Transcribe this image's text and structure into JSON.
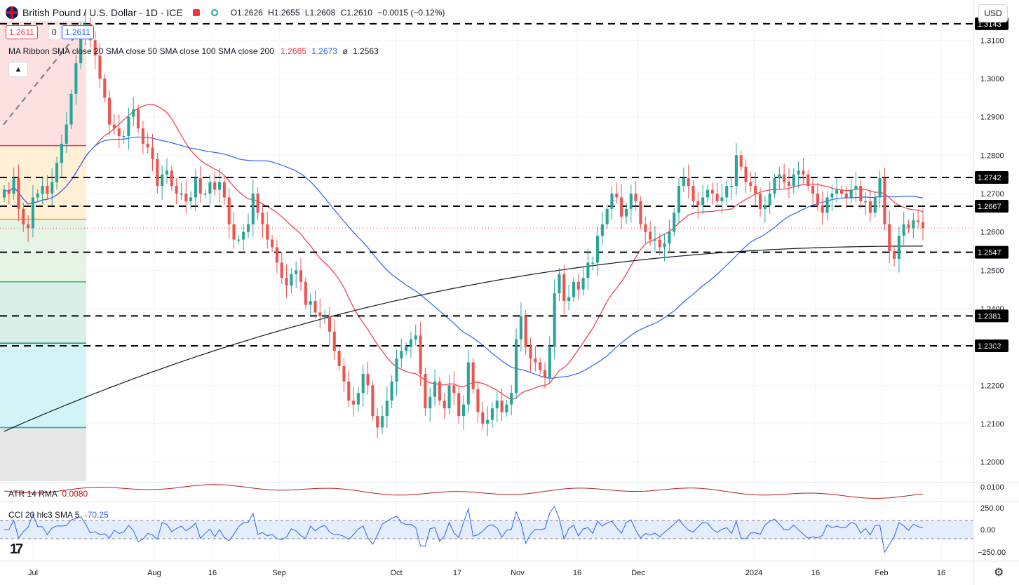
{
  "header": {
    "title": "British Pound / U.S. Dollar · 1D · ICE",
    "open": "O1.2626",
    "high": "H1.2655",
    "low": "L1.2608",
    "close": "C1.2610",
    "change": "−0.0015 (−0.12%)",
    "currency": "USD"
  },
  "price_boxes": {
    "bid": "1.2611",
    "spread": "0",
    "ask": "1.2611"
  },
  "indicators": {
    "ma_label": "MA Ribbon SMA close 20 SMA close 50 SMA close 100 SMA close 200",
    "ma_v1": "1.2665",
    "ma_v2": "1.2673",
    "ma_v3": "ø",
    "ma_v4": "1.2563",
    "atr_label": "ATR 14 RMA",
    "atr_value": "0.0080",
    "cci_label": "CCI 20 hlc3 SMA 5",
    "cci_value": "-70.25"
  },
  "colors": {
    "up": "#26a69a",
    "down": "#ef5350",
    "sma20": "#f23645",
    "sma50": "#2962ff",
    "sma200": "#131722",
    "atr": "#b71c1c",
    "cci": "#2962ff",
    "fib_red": "#f23645",
    "fib_orange": "#ff9800",
    "fib_green": "#4caf50",
    "fib_teal": "#089981",
    "fib_cyan": "#00bcd4"
  },
  "chart_data": {
    "type": "candlestick",
    "ylim": [
      1.195,
      1.315
    ],
    "y_ticks": [
      "1.2000",
      "1.2100",
      "1.2200",
      "1.2300",
      "1.2400",
      "1.2500",
      "1.2600",
      "1.2700",
      "1.2800",
      "1.2900",
      "1.3000",
      "1.3100"
    ],
    "x_ticks": [
      "Jul",
      "Aug",
      "16",
      "Sep",
      "Oct",
      "17",
      "Nov",
      "16",
      "Dec",
      "2024",
      "16",
      "Feb",
      "16"
    ],
    "level_labels": [
      "1.3143",
      "1.2742",
      "1.2667",
      "1.2547",
      "1.2381",
      "1.2303"
    ],
    "levels": [
      1.3143,
      1.2742,
      1.2667,
      1.2547,
      1.2381,
      1.2303
    ],
    "atr_ticks": [
      "0.0100"
    ],
    "cci_ticks": [
      "250.00",
      "0.00",
      "−250.00"
    ],
    "closes": [
      1.271,
      1.27,
      1.274,
      1.266,
      1.262,
      1.261,
      1.269,
      1.27,
      1.272,
      1.27,
      1.273,
      1.278,
      1.283,
      1.288,
      1.296,
      1.304,
      1.312,
      1.3143,
      1.31,
      1.306,
      1.3,
      1.295,
      1.288,
      1.287,
      1.285,
      1.285,
      1.29,
      1.292,
      1.287,
      1.283,
      1.282,
      1.279,
      1.272,
      1.275,
      1.276,
      1.272,
      1.27,
      1.27,
      1.268,
      1.269,
      1.274,
      1.27,
      1.27,
      1.273,
      1.271,
      1.273,
      1.269,
      1.262,
      1.258,
      1.258,
      1.26,
      1.262,
      1.27,
      1.265,
      1.262,
      1.258,
      1.256,
      1.252,
      1.248,
      1.246,
      1.249,
      1.25,
      1.247,
      1.241,
      1.242,
      1.239,
      1.238,
      1.238,
      1.234,
      1.229,
      1.225,
      1.221,
      1.216,
      1.215,
      1.218,
      1.223,
      1.22,
      1.212,
      1.209,
      1.212,
      1.216,
      1.221,
      1.227,
      1.229,
      1.23,
      1.232,
      1.233,
      1.223,
      1.214,
      1.217,
      1.221,
      1.216,
      1.214,
      1.22,
      1.218,
      1.212,
      1.215,
      1.226,
      1.219,
      1.213,
      1.21,
      1.211,
      1.214,
      1.216,
      1.213,
      1.215,
      1.218,
      1.232,
      1.238,
      1.23,
      1.227,
      1.226,
      1.224,
      1.222,
      1.23,
      1.244,
      1.249,
      1.242,
      1.243,
      1.247,
      1.245,
      1.248,
      1.252,
      1.252,
      1.259,
      1.262,
      1.266,
      1.27,
      1.269,
      1.264,
      1.266,
      1.27,
      1.268,
      1.262,
      1.26,
      1.258,
      1.258,
      1.256,
      1.257,
      1.26,
      1.265,
      1.272,
      1.274,
      1.272,
      1.268,
      1.267,
      1.269,
      1.271,
      1.27,
      1.268,
      1.269,
      1.272,
      1.272,
      1.28,
      1.277,
      1.273,
      1.272,
      1.27,
      1.266,
      1.267,
      1.27,
      1.274,
      1.275,
      1.273,
      1.272,
      1.275,
      1.276,
      1.275,
      1.272,
      1.27,
      1.267,
      1.265,
      1.269,
      1.27,
      1.271,
      1.27,
      1.269,
      1.271,
      1.272,
      1.268,
      1.268,
      1.265,
      1.269,
      1.274,
      1.262,
      1.255,
      1.253,
      1.259,
      1.262,
      1.261,
      1.263,
      1.2626,
      1.261
    ]
  }
}
